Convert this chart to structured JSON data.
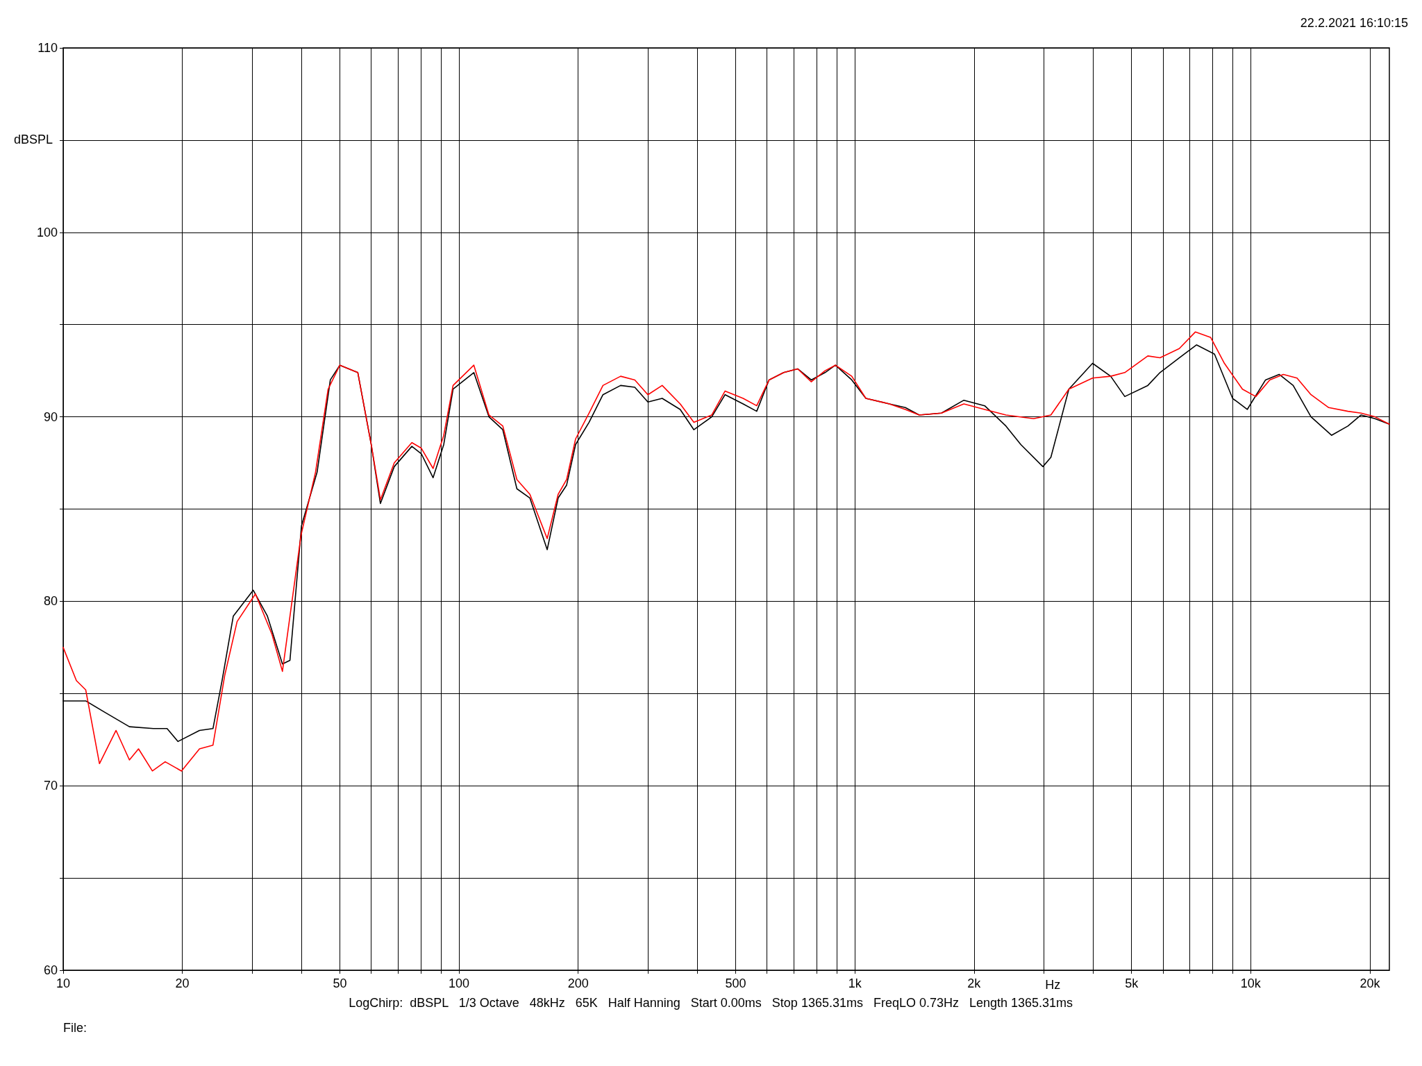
{
  "chart_data": {
    "type": "line",
    "xlabel": "Hz",
    "ylabel": "dBSPL",
    "log": "x",
    "grid": true,
    "marker": "none",
    "line_style": "solid",
    "xlim": [
      10,
      22400
    ],
    "ylim": [
      60,
      110
    ],
    "xticks": [
      10,
      20,
      {
        "value": 30,
        "label": null
      },
      {
        "value": 40,
        "label": null
      },
      50,
      {
        "value": 60,
        "label": null
      },
      {
        "value": 70,
        "label": null
      },
      {
        "value": 80,
        "label": null
      },
      {
        "value": 90,
        "label": null
      },
      100,
      200,
      {
        "value": 300,
        "label": null
      },
      {
        "value": 400,
        "label": null
      },
      500,
      {
        "value": 600,
        "label": null
      },
      {
        "value": 700,
        "label": null
      },
      {
        "value": 800,
        "label": null
      },
      {
        "value": 900,
        "label": null
      },
      {
        "value": 1000,
        "label": "1k"
      },
      {
        "value": 2000,
        "label": "2k"
      },
      {
        "value": 3000,
        "label": null
      },
      {
        "value": 4000,
        "label": null
      },
      {
        "value": 5000,
        "label": "5k"
      },
      {
        "value": 6000,
        "label": null
      },
      {
        "value": 7000,
        "label": null
      },
      {
        "value": 8000,
        "label": null
      },
      {
        "value": 9000,
        "label": null
      },
      {
        "value": 10000,
        "label": "10k"
      },
      {
        "value": 20000,
        "label": "20k"
      }
    ],
    "yticks": [
      60,
      {
        "value": 65,
        "label": null
      },
      70,
      {
        "value": 75,
        "label": null
      },
      80,
      {
        "value": 85,
        "label": null
      },
      90,
      {
        "value": 95,
        "label": null
      },
      100,
      {
        "value": 105,
        "label": null
      },
      110
    ],
    "annotations": [
      "22.2.2021 16:10:15",
      "LogChirp:  dBSPL   1/3 Octave   48kHz   65K   Half Hanning   Start 0.00ms   Stop 1365.31ms   FreqLO 0.73Hz   Length 1365.31ms",
      "File:"
    ],
    "series": [
      {
        "color": "#000000",
        "x": [
          10,
          11.4,
          12.7,
          14.7,
          16.9,
          18.3,
          19.5,
          22.1,
          23.9,
          25.2,
          26.9,
          30.2,
          32.8,
          35.8,
          37.4,
          40,
          43.8,
          47.3,
          50,
          55.5,
          60,
          63.3,
          68.6,
          76,
          80.3,
          86,
          91.5,
          96.6,
          109,
          119,
          129,
          140,
          151,
          167,
          178,
          187,
          197,
          213,
          231,
          256,
          278,
          300,
          326,
          362,
          392,
          435,
          470,
          522,
          565,
          607,
          661,
          717,
          776,
          841,
          893,
          982,
          1066,
          1222,
          1341,
          1454,
          1654,
          1885,
          2128,
          2408,
          2625,
          2985,
          3127,
          3472,
          3985,
          4428,
          4807,
          5496,
          5900,
          6600,
          7300,
          8100,
          9000,
          9800,
          10900,
          11800,
          12800,
          14200,
          16000,
          17600,
          19000,
          20600,
          22400
        ],
        "values": [
          74.6,
          74.6,
          74.0,
          73.2,
          73.1,
          73.1,
          72.4,
          73.0,
          73.1,
          75.7,
          79.2,
          80.6,
          79.2,
          76.6,
          76.8,
          84.1,
          87.0,
          92.0,
          92.8,
          92.4,
          88.5,
          85.3,
          87.3,
          88.4,
          88.0,
          86.7,
          88.5,
          91.5,
          92.4,
          90.0,
          89.3,
          86.1,
          85.6,
          82.8,
          85.6,
          86.3,
          88.5,
          89.7,
          91.2,
          91.7,
          91.6,
          90.8,
          91.0,
          90.4,
          89.3,
          90.0,
          91.2,
          90.7,
          90.3,
          92.0,
          92.4,
          92.6,
          92.0,
          92.4,
          92.8,
          92.0,
          91.0,
          90.7,
          90.5,
          90.1,
          90.2,
          90.9,
          90.6,
          89.5,
          88.5,
          87.3,
          87.8,
          91.5,
          92.9,
          92.2,
          91.1,
          91.7,
          92.4,
          93.2,
          93.9,
          93.4,
          91.0,
          90.4,
          92.0,
          92.3,
          91.7,
          90.0,
          89.0,
          89.5,
          90.1,
          89.9,
          89.6
        ]
      },
      {
        "color": "#ff0000",
        "x": [
          10,
          10.8,
          11.4,
          12.35,
          13.6,
          14.7,
          15.5,
          16.8,
          18.1,
          19.9,
          22.1,
          23.9,
          25.6,
          27.5,
          30.6,
          33.7,
          35.8,
          39.9,
          43.4,
          46.7,
          50,
          55.5,
          60,
          63.3,
          68.6,
          76,
          80.3,
          86,
          91.5,
          96.6,
          109,
          119,
          129,
          140,
          151,
          167,
          178,
          187,
          197,
          213,
          231,
          256,
          278,
          300,
          326,
          362,
          392,
          435,
          470,
          522,
          565,
          607,
          661,
          717,
          776,
          841,
          893,
          982,
          1066,
          1222,
          1341,
          1454,
          1654,
          1885,
          2128,
          2408,
          2828,
          3127,
          3472,
          3985,
          4428,
          4807,
          5496,
          5900,
          6600,
          7245,
          7925,
          8580,
          9530,
          10300,
          11170,
          12090,
          13090,
          14200,
          15740,
          17600,
          19000,
          20600,
          22400
        ],
        "values": [
          77.5,
          75.7,
          75.2,
          71.2,
          73.0,
          71.4,
          72.0,
          70.8,
          71.3,
          70.8,
          72.0,
          72.2,
          76.0,
          78.9,
          80.4,
          78.2,
          76.2,
          83.6,
          87.0,
          91.5,
          92.8,
          92.4,
          88.5,
          85.5,
          87.5,
          88.6,
          88.3,
          87.2,
          89.0,
          91.7,
          92.8,
          90.1,
          89.5,
          86.6,
          85.8,
          83.4,
          85.8,
          86.6,
          88.8,
          90.2,
          91.7,
          92.2,
          92.0,
          91.2,
          91.7,
          90.7,
          89.7,
          90.1,
          91.4,
          91.0,
          90.6,
          92.0,
          92.4,
          92.6,
          91.9,
          92.5,
          92.8,
          92.2,
          91.0,
          90.7,
          90.4,
          90.1,
          90.2,
          90.7,
          90.4,
          90.1,
          89.9,
          90.1,
          91.5,
          92.1,
          92.2,
          92.4,
          93.3,
          93.2,
          93.7,
          94.6,
          94.3,
          92.9,
          91.5,
          91.1,
          92.0,
          92.3,
          92.1,
          91.2,
          90.5,
          90.3,
          90.2,
          90.0,
          89.6
        ]
      }
    ]
  }
}
